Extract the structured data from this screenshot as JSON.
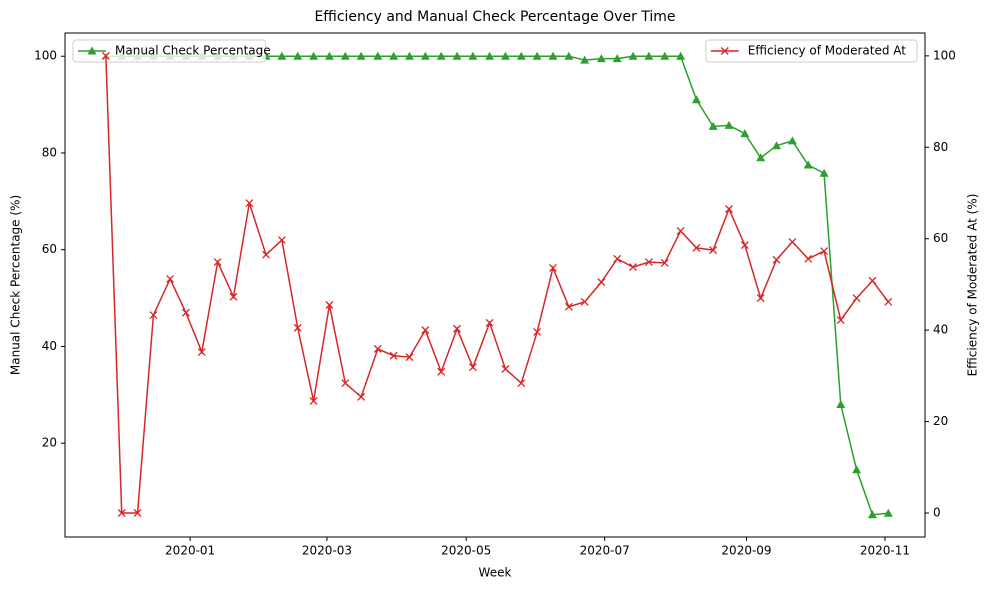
{
  "chart_data": {
    "type": "line",
    "title": "Efficiency and Manual Check Percentage Over Time",
    "xlabel": "Week",
    "ylabel": "Manual Check Percentage (%)",
    "y2label": "Efficiency of Moderated At (%)",
    "x": [
      2019.899,
      2019.918,
      2019.937,
      2019.956,
      2019.976,
      2019.995,
      2020.014,
      2020.033,
      2020.052,
      2020.071,
      2020.091,
      2020.11,
      2020.129,
      2020.148,
      2020.167,
      2020.186,
      2020.205,
      2020.225,
      2020.244,
      2020.263,
      2020.282,
      2020.301,
      2020.32,
      2020.339,
      2020.359,
      2020.378,
      2020.397,
      2020.416,
      2020.435,
      2020.454,
      2020.473,
      2020.493,
      2020.512,
      2020.531,
      2020.55,
      2020.569,
      2020.588,
      2020.607,
      2020.627,
      2020.646,
      2020.665,
      2020.684,
      2020.703,
      2020.722,
      2020.741,
      2020.76,
      2020.78,
      2020.799,
      2020.818,
      2020.837
    ],
    "xlim": [
      2019.85,
      2020.881
    ],
    "xticks": [
      {
        "value": 2020.0,
        "label": "2020-01"
      },
      {
        "value": 2020.164,
        "label": "2020-03"
      },
      {
        "value": 2020.331,
        "label": "2020-05"
      },
      {
        "value": 2020.497,
        "label": "2020-07"
      },
      {
        "value": 2020.667,
        "label": "2020-09"
      },
      {
        "value": 2020.833,
        "label": "2020-11"
      }
    ],
    "ylim": [
      0.6,
      104.8
    ],
    "yticks": [
      20,
      40,
      60,
      80,
      100
    ],
    "y2lim": [
      -5.25,
      105
    ],
    "y2ticks": [
      0,
      20,
      40,
      60,
      80,
      100
    ],
    "grid": false,
    "series": [
      {
        "name": "Manual Check Percentage",
        "color": "#2ca02c",
        "marker": "triangle",
        "legend": "upper left",
        "values": [
          100,
          100,
          100,
          100,
          100,
          100,
          100,
          100,
          100,
          100,
          100,
          100,
          100,
          100,
          100,
          100,
          100,
          100,
          100,
          100,
          100,
          100,
          100,
          100,
          100,
          100,
          100,
          100,
          100,
          100,
          99.2,
          99.5,
          99.5,
          100,
          100,
          100,
          100,
          91,
          85.5,
          85.7,
          84,
          79,
          81.5,
          82.5,
          77.5,
          75.8,
          28,
          14.5,
          5.2,
          5.5
        ]
      },
      {
        "name": "Efficiency of Moderated At",
        "color": "#d62728",
        "marker": "x",
        "axis": "y2",
        "legend": "upper right",
        "values": [
          100,
          0,
          0,
          43.3,
          51.2,
          43.8,
          35.2,
          54.9,
          47.3,
          67.8,
          56.5,
          59.7,
          40.5,
          24.5,
          45.5,
          28.4,
          25.4,
          35.9,
          34.4,
          34.1,
          40.0,
          30.9,
          40.3,
          31.9,
          41.6,
          31.5,
          28.4,
          39.6,
          53.6,
          45.1,
          46.2,
          50.5,
          55.6,
          53.8,
          54.9,
          54.7,
          61.7,
          58.0,
          57.5,
          66.5,
          58.6,
          47.0,
          55.4,
          59.3,
          55.6,
          57.3,
          42.2,
          47.0,
          50.8,
          46.2
        ]
      }
    ]
  }
}
